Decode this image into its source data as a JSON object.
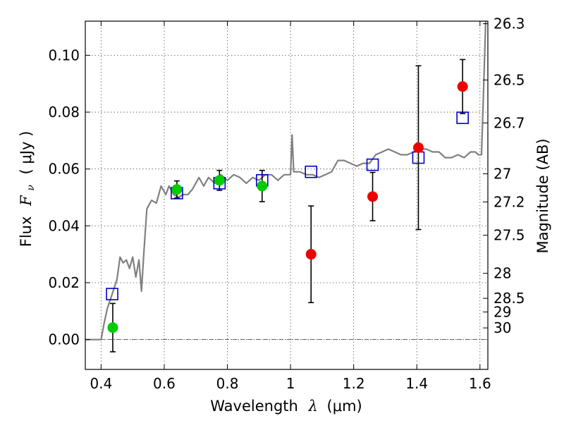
{
  "chart_data": {
    "type": "scatter",
    "xlabel_main": "Wavelength",
    "xlabel_symbol": "λ",
    "xlabel_unit": "(μm)",
    "ylabel_main": "Flux",
    "ylabel_symbol": "F",
    "ylabel_subscript": "ν",
    "ylabel_unit": "( μJy )",
    "ylabel_right": "Magnitude (AB)",
    "xlim": [
      0.35,
      1.625
    ],
    "ylim": [
      -0.0105,
      0.112
    ],
    "grid": true,
    "x_ticks": [
      0.4,
      0.6,
      0.8,
      1.0,
      1.2,
      1.4,
      1.6
    ],
    "x_tick_labels": [
      "0.4",
      "0.6",
      "0.8",
      "1",
      "1.2",
      "1.4",
      "1.6"
    ],
    "y_ticks": [
      0.0,
      0.02,
      0.04,
      0.06,
      0.08,
      0.1
    ],
    "y_tick_labels": [
      "0.00",
      "0.02",
      "0.04",
      "0.06",
      "0.08",
      "0.10"
    ],
    "mag_ticks": [
      {
        "label": "26.3",
        "flux": 0.1111
      },
      {
        "label": "26.5",
        "flux": 0.0913
      },
      {
        "label": "26.7",
        "flux": 0.0762
      },
      {
        "label": "27",
        "flux": 0.0583
      },
      {
        "label": "27.2",
        "flux": 0.0484
      },
      {
        "label": "27.5",
        "flux": 0.0367
      },
      {
        "label": "28",
        "flux": 0.0233
      },
      {
        "label": "28.5",
        "flux": 0.0145
      },
      {
        "label": "29",
        "flux": 0.0097
      },
      {
        "label": "30",
        "flux": 0.0041
      }
    ],
    "colors": {
      "model": "#808080",
      "model_points": "#0000cc",
      "green_points": "#00cc00",
      "red_points": "#ee0000",
      "error_bars": "#000000",
      "grid": "#555555"
    },
    "model_spectrum": [
      [
        0.35,
        0.0
      ],
      [
        0.38,
        0.0
      ],
      [
        0.4,
        0.0
      ],
      [
        0.41,
        0.006
      ],
      [
        0.42,
        0.011
      ],
      [
        0.435,
        0.016
      ],
      [
        0.45,
        0.021
      ],
      [
        0.46,
        0.029
      ],
      [
        0.47,
        0.027
      ],
      [
        0.48,
        0.028
      ],
      [
        0.49,
        0.025
      ],
      [
        0.5,
        0.029
      ],
      [
        0.51,
        0.022
      ],
      [
        0.52,
        0.028
      ],
      [
        0.528,
        0.017
      ],
      [
        0.535,
        0.03
      ],
      [
        0.545,
        0.046
      ],
      [
        0.56,
        0.049
      ],
      [
        0.575,
        0.048
      ],
      [
        0.59,
        0.054
      ],
      [
        0.605,
        0.051
      ],
      [
        0.615,
        0.054
      ],
      [
        0.63,
        0.051
      ],
      [
        0.645,
        0.05
      ],
      [
        0.66,
        0.051
      ],
      [
        0.675,
        0.051
      ],
      [
        0.69,
        0.053
      ],
      [
        0.71,
        0.057
      ],
      [
        0.725,
        0.054
      ],
      [
        0.74,
        0.057
      ],
      [
        0.76,
        0.055
      ],
      [
        0.78,
        0.058
      ],
      [
        0.8,
        0.056
      ],
      [
        0.82,
        0.058
      ],
      [
        0.84,
        0.057
      ],
      [
        0.86,
        0.055
      ],
      [
        0.88,
        0.057
      ],
      [
        0.9,
        0.056
      ],
      [
        0.92,
        0.058
      ],
      [
        0.94,
        0.058
      ],
      [
        0.96,
        0.056
      ],
      [
        0.98,
        0.058
      ],
      [
        0.995,
        0.058
      ],
      [
        1.0,
        0.058
      ],
      [
        1.005,
        0.072
      ],
      [
        1.01,
        0.059
      ],
      [
        1.03,
        0.059
      ],
      [
        1.05,
        0.058
      ],
      [
        1.07,
        0.058
      ],
      [
        1.09,
        0.057
      ],
      [
        1.11,
        0.058
      ],
      [
        1.13,
        0.059
      ],
      [
        1.15,
        0.063
      ],
      [
        1.17,
        0.063
      ],
      [
        1.19,
        0.062
      ],
      [
        1.21,
        0.061
      ],
      [
        1.23,
        0.062
      ],
      [
        1.25,
        0.062
      ],
      [
        1.27,
        0.065
      ],
      [
        1.29,
        0.066
      ],
      [
        1.31,
        0.067
      ],
      [
        1.33,
        0.066
      ],
      [
        1.35,
        0.065
      ],
      [
        1.37,
        0.065
      ],
      [
        1.39,
        0.066
      ],
      [
        1.41,
        0.067
      ],
      [
        1.43,
        0.067
      ],
      [
        1.45,
        0.066
      ],
      [
        1.47,
        0.066
      ],
      [
        1.49,
        0.064
      ],
      [
        1.51,
        0.064
      ],
      [
        1.53,
        0.065
      ],
      [
        1.55,
        0.064
      ],
      [
        1.57,
        0.066
      ],
      [
        1.585,
        0.066
      ],
      [
        1.595,
        0.065
      ],
      [
        1.605,
        0.065
      ],
      [
        1.612,
        0.09
      ],
      [
        1.618,
        0.112
      ]
    ],
    "model_points": [
      {
        "x": 0.435,
        "y": 0.016
      },
      {
        "x": 0.64,
        "y": 0.0515
      },
      {
        "x": 0.775,
        "y": 0.055
      },
      {
        "x": 0.91,
        "y": 0.056
      },
      {
        "x": 1.065,
        "y": 0.059
      },
      {
        "x": 1.26,
        "y": 0.0615
      },
      {
        "x": 1.405,
        "y": 0.064
      },
      {
        "x": 1.545,
        "y": 0.078
      }
    ],
    "green_points": [
      {
        "x": 0.437,
        "y": 0.0042,
        "err": 0.0085
      },
      {
        "x": 0.64,
        "y": 0.0528,
        "err": 0.003
      },
      {
        "x": 0.775,
        "y": 0.056,
        "err": 0.0035
      },
      {
        "x": 0.91,
        "y": 0.054,
        "err": 0.0055
      }
    ],
    "red_points": [
      {
        "x": 1.065,
        "y": 0.03,
        "err": 0.017
      },
      {
        "x": 1.26,
        "y": 0.0503,
        "err": 0.0085
      },
      {
        "x": 1.405,
        "y": 0.0675,
        "err": 0.0288
      },
      {
        "x": 1.545,
        "y": 0.089,
        "err": 0.0095
      }
    ]
  }
}
